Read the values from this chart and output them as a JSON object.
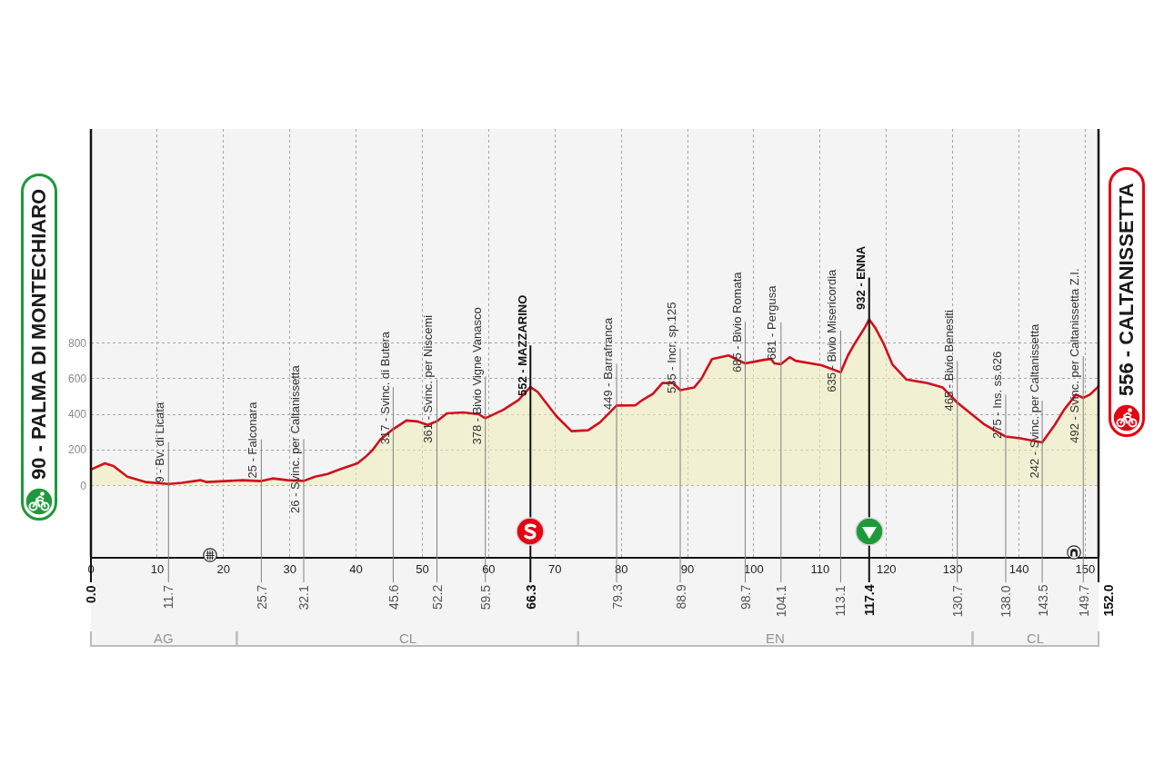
{
  "chart_data": {
    "type": "area",
    "color": "#d0101c",
    "x": [
      0,
      2.1,
      3.4,
      5.5,
      8.2,
      11.7,
      13.7,
      16.5,
      17.4,
      20.1,
      22.9,
      25.7,
      27.4,
      29.7,
      32.1,
      33.8,
      35.7,
      37.5,
      40.2,
      41.4,
      42.5,
      43.7,
      45.6,
      47.6,
      49.2,
      50.8,
      52.2,
      53.7,
      56.2,
      58.5,
      59.5,
      62.2,
      64.5,
      65.6,
      66.3,
      67.4,
      70.2,
      72.5,
      75,
      76.8,
      79.3,
      82.1,
      83.2,
      84.8,
      86.2,
      87.8,
      88.9,
      91,
      92.1,
      93.7,
      96.2,
      98.7,
      100.1,
      101.5,
      102.6,
      103.1,
      104.1,
      105.4,
      106.3,
      110.2,
      113.1,
      114.2,
      115.2,
      116.8,
      117.4,
      118.4,
      119.6,
      120.9,
      123,
      126.2,
      128.5,
      130.7,
      134.7,
      138,
      140.2,
      143.5,
      145.4,
      146.8,
      148.6,
      149.7,
      150.7,
      152
    ],
    "values": [
      90,
      125,
      110,
      50,
      20,
      9,
      15,
      30,
      20,
      25,
      30,
      25,
      40,
      30,
      26,
      50,
      65,
      90,
      125,
      160,
      200,
      260,
      317,
      365,
      360,
      340,
      361,
      405,
      410,
      400,
      378,
      425,
      480,
      525,
      552,
      525,
      390,
      305,
      310,
      355,
      449,
      450,
      480,
      515,
      575,
      575,
      535,
      550,
      600,
      710,
      730,
      685,
      695,
      705,
      710,
      685,
      681,
      720,
      700,
      675,
      635,
      730,
      795,
      890,
      932,
      880,
      795,
      680,
      595,
      575,
      550,
      465,
      345,
      275,
      265,
      242,
      340,
      425,
      510,
      492,
      510,
      556
    ],
    "xlim": [
      0,
      152
    ],
    "xticks": [
      0,
      10,
      20,
      30,
      40,
      50,
      60,
      70,
      80,
      90,
      100,
      110,
      120,
      130,
      140,
      150
    ],
    "ylim": [
      -400,
      2000
    ],
    "yticks": [
      0,
      200,
      400,
      600,
      800
    ],
    "grid": true,
    "annotations": [
      {
        "text": "90 - PALMA DI MONTECHIARO",
        "x": 0,
        "y": 90
      },
      {
        "text": "9 - Bv. di Licata",
        "x": 11.7,
        "y": 9
      },
      {
        "text": "25 - Falconara",
        "x": 25.7,
        "y": 25
      },
      {
        "text": "26 - Svinc. per Caltanissetta",
        "x": 32.1,
        "y": 26
      },
      {
        "text": "317 - Svinc. di Butera",
        "x": 45.6,
        "y": 317
      },
      {
        "text": "361 - Svinc. per Niscemi",
        "x": 52.2,
        "y": 361
      },
      {
        "text": "378 - Bivio Vigne Vanasco",
        "x": 59.5,
        "y": 378
      },
      {
        "text": "552 - MAZZARINO",
        "x": 66.3,
        "y": 552
      },
      {
        "text": "449 - Barrafranca",
        "x": 79.3,
        "y": 449
      },
      {
        "text": "535 - Incr. sp.125",
        "x": 88.9,
        "y": 535
      },
      {
        "text": "685 - Bivio Romata",
        "x": 98.7,
        "y": 685
      },
      {
        "text": "681 - Pergusa",
        "x": 104.1,
        "y": 681
      },
      {
        "text": "635 - Bivio Misericordia",
        "x": 113.1,
        "y": 635
      },
      {
        "text": "932 - ENNA",
        "x": 117.4,
        "y": 932
      },
      {
        "text": "465 - Bivio Benesiti",
        "x": 130.7,
        "y": 465
      },
      {
        "text": "275 - Ins. ss.626",
        "x": 138,
        "y": 275
      },
      {
        "text": "242 - Svinc. per Caltanissetta",
        "x": 143.5,
        "y": 242
      },
      {
        "text": "492 - Svinc. per Caltanissetta Z.I.",
        "x": 149.7,
        "y": 492
      },
      {
        "text": "556 - CALTANISSETTA",
        "x": 152,
        "y": 556
      }
    ],
    "ref_lines": [
      {
        "axis": "x",
        "value": 0,
        "label": "0.0",
        "color": "#111111"
      },
      {
        "axis": "x",
        "value": 11.7,
        "label": "11.7",
        "color": "#808080"
      },
      {
        "axis": "x",
        "value": 25.7,
        "label": "25.7",
        "color": "#808080"
      },
      {
        "axis": "x",
        "value": 32.1,
        "label": "32.1",
        "color": "#808080"
      },
      {
        "axis": "x",
        "value": 45.6,
        "label": "45.6",
        "color": "#808080"
      },
      {
        "axis": "x",
        "value": 52.2,
        "label": "52.2",
        "color": "#808080"
      },
      {
        "axis": "x",
        "value": 59.5,
        "label": "59.5",
        "color": "#808080"
      },
      {
        "axis": "x",
        "value": 66.3,
        "label": "66.3",
        "color": "#111111"
      },
      {
        "axis": "x",
        "value": 79.3,
        "label": "79.3",
        "color": "#808080"
      },
      {
        "axis": "x",
        "value": 88.9,
        "label": "88.9",
        "color": "#808080"
      },
      {
        "axis": "x",
        "value": 98.7,
        "label": "98.7",
        "color": "#808080"
      },
      {
        "axis": "x",
        "value": 104.1,
        "label": "104.1",
        "color": "#808080"
      },
      {
        "axis": "x",
        "value": 113.1,
        "label": "113.1",
        "color": "#808080"
      },
      {
        "axis": "x",
        "value": 117.4,
        "label": "117.4",
        "color": "#111111"
      },
      {
        "axis": "x",
        "value": 130.7,
        "label": "130.7",
        "color": "#808080"
      },
      {
        "axis": "x",
        "value": 138,
        "label": "138.0",
        "color": "#808080"
      },
      {
        "axis": "x",
        "value": 143.5,
        "label": "143.5",
        "color": "#808080"
      },
      {
        "axis": "x",
        "value": 149.7,
        "label": "149.7",
        "color": "#808080"
      },
      {
        "axis": "x",
        "value": 152,
        "label": "152.0",
        "color": "#111111"
      }
    ],
    "bands": [
      {
        "axis": "x",
        "from": 0,
        "to": 22,
        "label": "AG",
        "color": "#bbbbbb"
      },
      {
        "axis": "x",
        "from": 22,
        "to": 73.5,
        "label": "CL",
        "color": "#bbbbbb"
      },
      {
        "axis": "x",
        "from": 73.5,
        "to": 133,
        "label": "EN",
        "color": "#bbbbbb"
      },
      {
        "axis": "x",
        "from": 133,
        "to": 152,
        "label": "CL",
        "color": "#bbbbbb"
      }
    ]
  }
}
